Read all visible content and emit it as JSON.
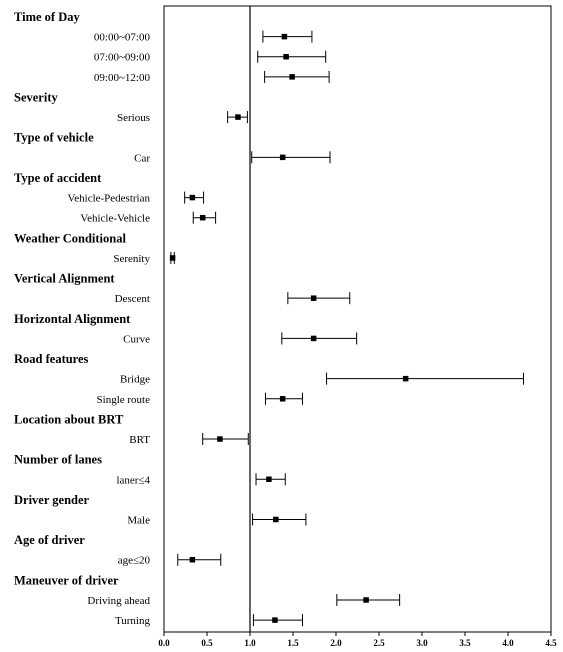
{
  "chart_data": {
    "type": "forest",
    "title": "",
    "xlabel": "",
    "ylabel": "",
    "xlim": [
      0.0,
      4.5
    ],
    "xticks": [
      "0.0",
      "0.5",
      "1.0",
      "1.5",
      "2.0",
      "2.5",
      "3.0",
      "3.5",
      "4.0",
      "4.5"
    ],
    "reference_line": 1.0,
    "grid": false,
    "groups": [
      {
        "label": "Time of Day",
        "items": [
          {
            "label": "00:00~07:00",
            "estimate": 1.4,
            "lower": 1.15,
            "upper": 1.72
          },
          {
            "label": "07:00~09:00",
            "estimate": 1.42,
            "lower": 1.09,
            "upper": 1.88
          },
          {
            "label": "09:00~12:00",
            "estimate": 1.49,
            "lower": 1.17,
            "upper": 1.92
          }
        ]
      },
      {
        "label": "Severity",
        "items": [
          {
            "label": "Serious",
            "estimate": 0.86,
            "lower": 0.74,
            "upper": 0.97
          }
        ]
      },
      {
        "label": "Type of vehicle",
        "items": [
          {
            "label": "Car",
            "estimate": 1.38,
            "lower": 1.02,
            "upper": 1.93
          }
        ]
      },
      {
        "label": "Type of accident",
        "items": [
          {
            "label": "Vehicle-Pedestrian",
            "estimate": 0.33,
            "lower": 0.24,
            "upper": 0.46
          },
          {
            "label": "Vehicle-Vehicle",
            "estimate": 0.45,
            "lower": 0.34,
            "upper": 0.6
          }
        ]
      },
      {
        "label": "Weather Conditional",
        "items": [
          {
            "label": "Serenity",
            "estimate": 0.1,
            "lower": 0.08,
            "upper": 0.12
          }
        ]
      },
      {
        "label": "Vertical Alignment",
        "items": [
          {
            "label": "Descent",
            "estimate": 1.74,
            "lower": 1.44,
            "upper": 2.16
          }
        ]
      },
      {
        "label": "Horizontal Alignment",
        "items": [
          {
            "label": "Curve",
            "estimate": 1.74,
            "lower": 1.37,
            "upper": 2.24
          }
        ]
      },
      {
        "label": "Road features",
        "items": [
          {
            "label": "Bridge",
            "estimate": 2.81,
            "lower": 1.89,
            "upper": 4.18
          },
          {
            "label": "Single route",
            "estimate": 1.38,
            "lower": 1.18,
            "upper": 1.61
          }
        ]
      },
      {
        "label": "Location about BRT",
        "items": [
          {
            "label": "BRT",
            "estimate": 0.65,
            "lower": 0.45,
            "upper": 0.98
          }
        ]
      },
      {
        "label": "Number of lanes",
        "items": [
          {
            "label": "laner≤4",
            "estimate": 1.22,
            "lower": 1.07,
            "upper": 1.41
          }
        ]
      },
      {
        "label": "Driver gender",
        "items": [
          {
            "label": "Male",
            "estimate": 1.3,
            "lower": 1.03,
            "upper": 1.65
          }
        ]
      },
      {
        "label": "Age of driver",
        "items": [
          {
            "label": "age≤20",
            "estimate": 0.33,
            "lower": 0.16,
            "upper": 0.66
          }
        ]
      },
      {
        "label": "Maneuver of driver",
        "items": [
          {
            "label": "Driving ahead",
            "estimate": 2.35,
            "lower": 2.01,
            "upper": 2.74
          },
          {
            "label": "Turning",
            "estimate": 1.29,
            "lower": 1.04,
            "upper": 1.61
          }
        ]
      }
    ]
  }
}
